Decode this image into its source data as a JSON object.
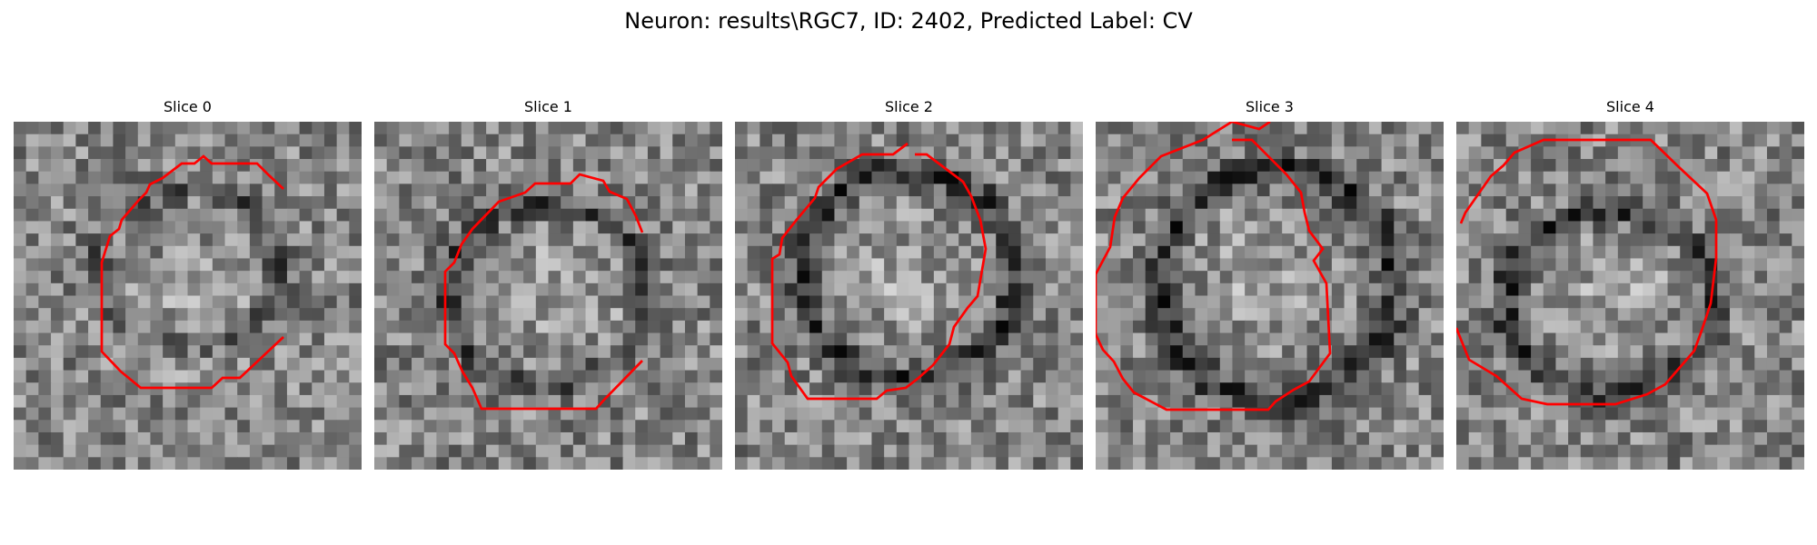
{
  "figure": {
    "title": "Neuron: results\\RGC7, ID: 2402, Predicted Label: CV"
  },
  "panels": [
    {
      "title": "Slice 0"
    },
    {
      "title": "Slice 1"
    },
    {
      "title": "Slice 2"
    },
    {
      "title": "Slice 3"
    },
    {
      "title": "Slice 4"
    }
  ],
  "colors": {
    "contour": "#ff0000",
    "colormap": "gray"
  }
}
